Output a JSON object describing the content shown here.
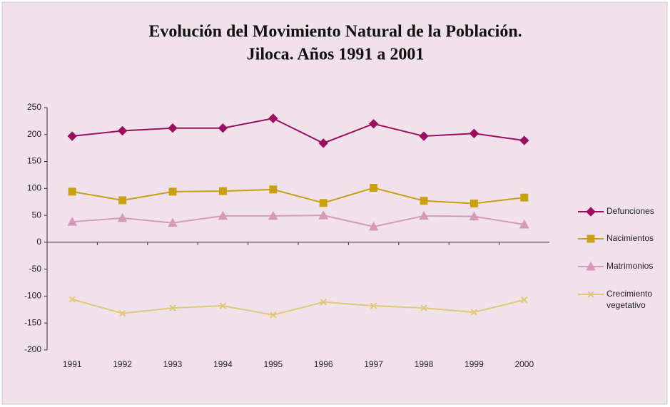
{
  "chart_data": {
    "type": "line",
    "title": [
      "Evolución del Movimiento Natural de la Población.",
      "Jiloca. Años 1991 a 2001"
    ],
    "categories": [
      "1991",
      "1992",
      "1993",
      "1994",
      "1995",
      "1996",
      "1997",
      "1998",
      "1999",
      "2000"
    ],
    "series": [
      {
        "name": "Defunciones",
        "color": "#9b0f5e",
        "marker": "diamond",
        "values": [
          197,
          207,
          212,
          212,
          230,
          184,
          220,
          197,
          202,
          189
        ]
      },
      {
        "name": "Nacimientos",
        "color": "#c9a010",
        "marker": "square",
        "values": [
          94,
          78,
          94,
          95,
          98,
          73,
          101,
          77,
          72,
          83
        ]
      },
      {
        "name": "Matrimonios",
        "color": "#d49ab8",
        "marker": "triangle",
        "values": [
          38,
          45,
          36,
          49,
          49,
          50,
          29,
          49,
          48,
          33
        ]
      },
      {
        "name": "Crecimiento vegetativo",
        "color": "#e0c878",
        "marker": "x",
        "values": [
          -106,
          -132,
          -122,
          -118,
          -135,
          -111,
          -118,
          -122,
          -130,
          -107
        ]
      }
    ],
    "ylim": [
      -200,
      250
    ],
    "yticks": [
      -200,
      -150,
      -100,
      -50,
      0,
      50,
      100,
      150,
      200,
      250
    ],
    "grid": false,
    "legend": "right"
  }
}
